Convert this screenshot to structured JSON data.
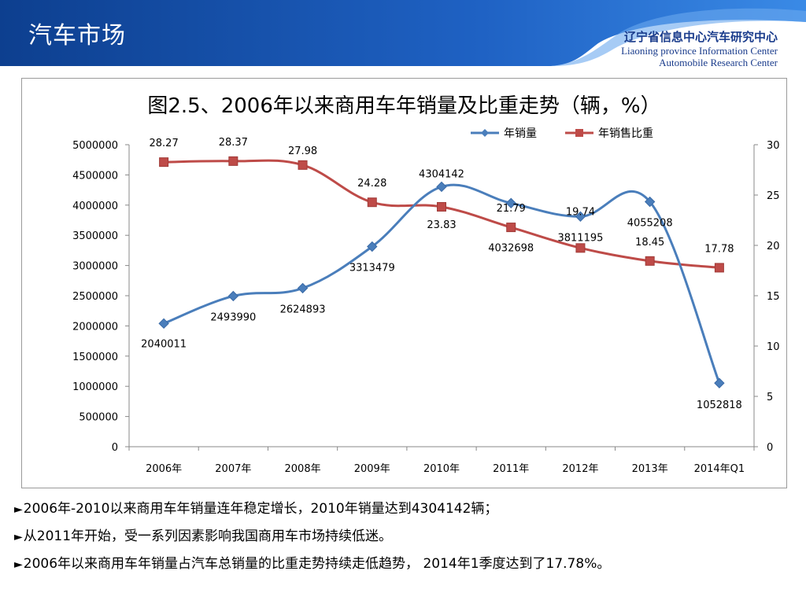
{
  "header": {
    "title": "汽车市场",
    "org_cn": "辽宁省信息中心汽车研究中心",
    "org_en_line1": "Liaoning province Information Center",
    "org_en_line2": "Automobile Research Center"
  },
  "colors": {
    "banner_dark": "#0d3f8f",
    "banner_light": "#2f7ad8",
    "series_volume": "#4a7ebb",
    "series_share": "#be4b48"
  },
  "chart_data": {
    "type": "line",
    "title": "图2.5、2006年以来商用车年销量及比重走势（辆，%）",
    "categories": [
      "2006年",
      "2007年",
      "2008年",
      "2009年",
      "2010年",
      "2011年",
      "2012年",
      "2013年",
      "2014年Q1"
    ],
    "series": [
      {
        "name": "年销量",
        "axis": "left",
        "values": [
          2040011,
          2493990,
          2624893,
          3313479,
          4304142,
          4032698,
          3811195,
          4055208,
          1052818
        ],
        "labels": [
          "2040011",
          "2493990",
          "2624893",
          "3313479",
          "4304142",
          "4032698",
          "3811195",
          "4055208",
          "1052818"
        ],
        "marker": "diamond",
        "color": "#4a7ebb"
      },
      {
        "name": "年销售比重",
        "axis": "right",
        "values": [
          28.27,
          28.37,
          27.98,
          24.28,
          23.83,
          21.79,
          19.74,
          18.45,
          17.78
        ],
        "labels": [
          "28.27",
          "28.37",
          "27.98",
          "24.28",
          "23.83",
          "21.79",
          "19.74",
          "18.45",
          "17.78"
        ],
        "marker": "square",
        "color": "#be4b48"
      }
    ],
    "y_left": {
      "range": [
        0,
        5000000
      ],
      "ticks": [
        "0",
        "500000",
        "1000000",
        "1500000",
        "2000000",
        "2500000",
        "3000000",
        "3500000",
        "4000000",
        "4500000",
        "5000000"
      ]
    },
    "y_right": {
      "range": [
        0,
        30
      ],
      "ticks": [
        "0",
        "5",
        "10",
        "15",
        "20",
        "25",
        "30"
      ]
    },
    "grid": false,
    "legend": "top-right",
    "smooth": true
  },
  "notes": [
    "2006年-2010以来商用车年销量连年稳定增长，2010年销量达到4304142辆；",
    "从2011年开始，受一系列因素影响我国商用车市场持续低迷。",
    "2006年以来商用车年销量占汽车总销量的比重走势持续走低趋势， 2014年1季度达到了17.78%。"
  ],
  "note_marker": "►"
}
